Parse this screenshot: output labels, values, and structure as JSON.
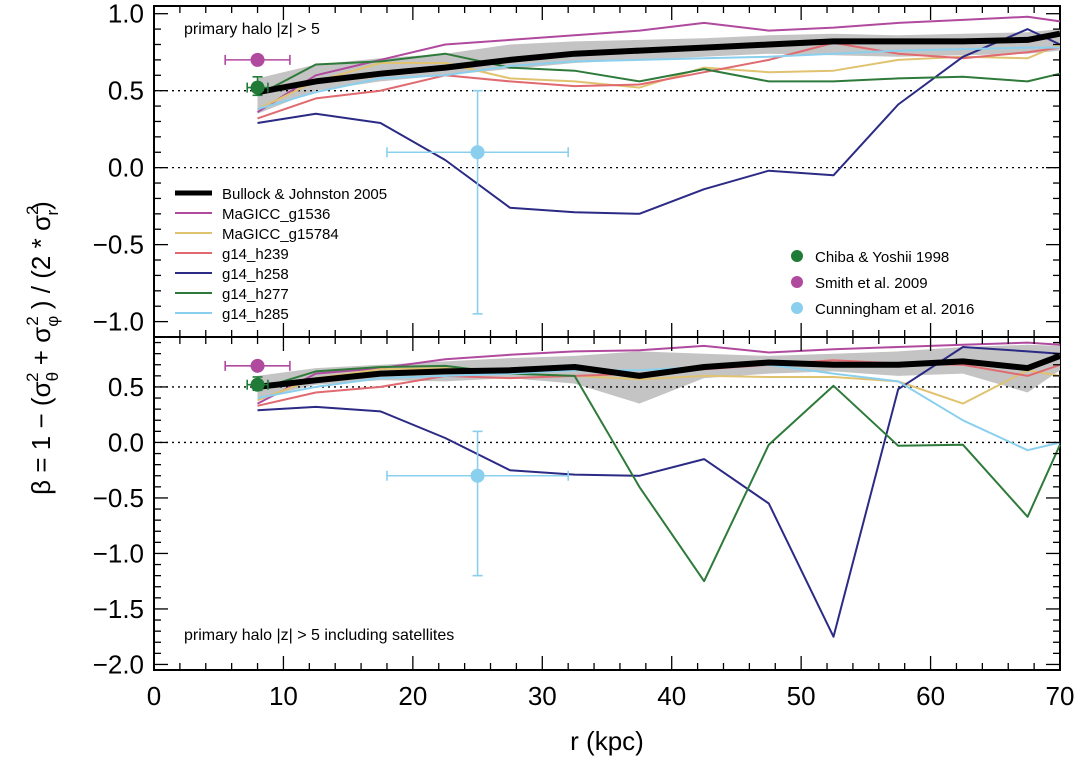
{
  "chart_data": {
    "type": "line",
    "xlabel": "r (kpc)",
    "ylabel": {
      "text_a": "β = 1 − (σ",
      "sup_a": "2",
      "sub_a": "θ",
      "text_b": " + σ",
      "sup_b": "2",
      "sub_b": "φ",
      "text_c": " ) / (2 * σ",
      "sup_c": "2",
      "sub_c": "r",
      "text_d": ")"
    },
    "xlim": [
      0,
      70
    ],
    "x_ticks": [
      "0",
      "10",
      "20",
      "30",
      "40",
      "50",
      "60",
      "70"
    ],
    "x_tick_values": [
      0,
      10,
      20,
      30,
      40,
      50,
      60,
      70
    ],
    "grid": false,
    "reference_lines": [
      0.0,
      0.5
    ],
    "panels": [
      {
        "annotation": "primary halo |z| > 5",
        "annotation_position": "top-left",
        "ylim": [
          -1.1,
          1.05
        ],
        "y_ticks": [
          "1.0",
          "0.5",
          "0.0",
          "−0.5",
          "−1.0"
        ],
        "y_tick_values": [
          1.0,
          0.5,
          0.0,
          -0.5,
          -1.0
        ],
        "bullock_band": {
          "x": [
            8,
            12.5,
            17.5,
            22.5,
            27.5,
            32.5,
            37.5,
            42.5,
            47.5,
            52.5,
            57.5,
            62.5,
            67.5,
            70
          ],
          "lower": [
            0.35,
            0.5,
            0.56,
            0.6,
            0.64,
            0.68,
            0.7,
            0.72,
            0.74,
            0.73,
            0.72,
            0.73,
            0.74,
            0.76
          ],
          "upper": [
            0.58,
            0.67,
            0.71,
            0.74,
            0.8,
            0.82,
            0.83,
            0.84,
            0.86,
            0.87,
            0.86,
            0.87,
            0.88,
            0.9
          ]
        },
        "series": [
          {
            "name": "Bullock & Johnston 2005",
            "color": "#000000",
            "width": 6,
            "x": [
              8,
              12.5,
              17.5,
              22.5,
              27.5,
              32.5,
              37.5,
              42.5,
              47.5,
              52.5,
              57.5,
              62.5,
              67.5,
              70
            ],
            "y": [
              0.49,
              0.56,
              0.61,
              0.65,
              0.7,
              0.74,
              0.76,
              0.78,
              0.8,
              0.82,
              0.82,
              0.82,
              0.83,
              0.87
            ]
          },
          {
            "name": "MaGICC_g1536",
            "color": "#b04a9e",
            "width": 2,
            "x": [
              8,
              12.5,
              17.5,
              22.5,
              27.5,
              32.5,
              37.5,
              42.5,
              47.5,
              52.5,
              57.5,
              62.5,
              67.5,
              70
            ],
            "y": [
              0.36,
              0.6,
              0.7,
              0.8,
              0.83,
              0.86,
              0.89,
              0.94,
              0.89,
              0.91,
              0.94,
              0.96,
              0.98,
              0.95
            ]
          },
          {
            "name": "MaGICC_g15784",
            "color": "#e0c270",
            "width": 2,
            "x": [
              8,
              12.5,
              17.5,
              22.5,
              27.5,
              32.5,
              37.5,
              42.5,
              47.5,
              52.5,
              57.5,
              62.5,
              67.5,
              70
            ],
            "y": [
              0.38,
              0.56,
              0.68,
              0.68,
              0.58,
              0.56,
              0.52,
              0.65,
              0.62,
              0.63,
              0.7,
              0.72,
              0.71,
              0.8
            ]
          },
          {
            "name": "g14_h239",
            "color": "#e06a70",
            "width": 2,
            "x": [
              8,
              12.5,
              17.5,
              22.5,
              27.5,
              32.5,
              37.5,
              42.5,
              47.5,
              52.5,
              57.5,
              62.5,
              67.5,
              70
            ],
            "y": [
              0.32,
              0.45,
              0.5,
              0.6,
              0.56,
              0.53,
              0.54,
              0.62,
              0.7,
              0.81,
              0.74,
              0.71,
              0.75,
              0.78
            ]
          },
          {
            "name": "g14_h258",
            "color": "#2b2a85",
            "width": 2,
            "x": [
              8,
              12.5,
              17.5,
              22.5,
              27.5,
              32.5,
              37.5,
              42.5,
              47.5,
              52.5,
              57.5,
              62.5,
              67.5,
              70
            ],
            "y": [
              0.29,
              0.35,
              0.29,
              0.05,
              -0.26,
              -0.29,
              -0.3,
              -0.14,
              -0.02,
              -0.05,
              0.41,
              0.72,
              0.9,
              0.8
            ]
          },
          {
            "name": "g14_h277",
            "color": "#2e7a3a",
            "width": 2,
            "x": [
              8,
              12.5,
              17.5,
              22.5,
              27.5,
              32.5,
              37.5,
              42.5,
              47.5,
              52.5,
              57.5,
              62.5,
              67.5,
              70
            ],
            "y": [
              0.47,
              0.67,
              0.69,
              0.74,
              0.65,
              0.63,
              0.56,
              0.64,
              0.56,
              0.56,
              0.58,
              0.59,
              0.56,
              0.61
            ]
          },
          {
            "name": "g14_h285",
            "color": "#8ad0ee",
            "width": 2,
            "x": [
              8,
              12.5,
              17.5,
              22.5,
              27.5,
              32.5,
              37.5,
              42.5,
              47.5,
              52.5,
              57.5,
              62.5,
              67.5,
              70
            ],
            "y": [
              0.38,
              0.49,
              0.58,
              0.6,
              0.66,
              0.69,
              0.7,
              0.71,
              0.72,
              0.74,
              0.76,
              0.77,
              0.78,
              0.78
            ]
          }
        ],
        "observations": [
          {
            "name": "Chiba & Yoshii 1998",
            "color": "#207a38",
            "x": 8,
            "y": 0.52,
            "xerr": [
              0.8,
              0.8
            ],
            "yerr": [
              0.05,
              0.07
            ]
          },
          {
            "name": "Smith et al. 2009",
            "color": "#b04a9e",
            "x": 8,
            "y": 0.7,
            "xerr": [
              2.5,
              2.5
            ],
            "yerr": [
              0,
              0
            ]
          },
          {
            "name": "Cunningham et al. 2016",
            "color": "#8ad0ee",
            "x": 25,
            "y": 0.1,
            "xerr": [
              7,
              7
            ],
            "yerr": [
              1.05,
              0.4
            ]
          }
        ]
      },
      {
        "annotation": "primary halo |z| > 5 including satellites",
        "annotation_position": "bottom-left",
        "ylim": [
          -2.05,
          0.95
        ],
        "y_ticks": [
          "0.5",
          "0.0",
          "−0.5",
          "−1.0",
          "−1.5",
          "−2.0"
        ],
        "y_tick_values": [
          0.5,
          0.0,
          -0.5,
          -1.0,
          -1.5,
          -2.0
        ],
        "bullock_band": {
          "x": [
            8,
            12.5,
            17.5,
            22.5,
            27.5,
            32.5,
            37.5,
            42.5,
            47.5,
            52.5,
            57.5,
            62.5,
            67.5,
            70
          ],
          "lower": [
            0.4,
            0.52,
            0.56,
            0.55,
            0.58,
            0.53,
            0.35,
            0.58,
            0.62,
            0.64,
            0.6,
            0.62,
            0.45,
            0.65
          ],
          "upper": [
            0.6,
            0.67,
            0.7,
            0.73,
            0.76,
            0.78,
            0.82,
            0.8,
            0.78,
            0.8,
            0.82,
            0.86,
            0.88,
            0.87
          ]
        },
        "series": [
          {
            "name": "Bullock & Johnston 2005",
            "color": "#000000",
            "width": 6,
            "x": [
              8,
              12.5,
              17.5,
              22.5,
              27.5,
              32.5,
              37.5,
              42.5,
              47.5,
              52.5,
              57.5,
              62.5,
              67.5,
              70
            ],
            "y": [
              0.5,
              0.56,
              0.62,
              0.64,
              0.65,
              0.68,
              0.6,
              0.68,
              0.72,
              0.7,
              0.7,
              0.73,
              0.67,
              0.78
            ]
          },
          {
            "name": "MaGICC_g1536",
            "color": "#b04a9e",
            "width": 2,
            "x": [
              8,
              12.5,
              17.5,
              22.5,
              27.5,
              32.5,
              37.5,
              42.5,
              47.5,
              52.5,
              57.5,
              62.5,
              67.5,
              70
            ],
            "y": [
              0.35,
              0.62,
              0.67,
              0.75,
              0.79,
              0.82,
              0.83,
              0.87,
              0.81,
              0.84,
              0.86,
              0.88,
              0.9,
              0.88
            ]
          },
          {
            "name": "MaGICC_g15784",
            "color": "#e0c270",
            "width": 2,
            "x": [
              8,
              12.5,
              17.5,
              22.5,
              27.5,
              32.5,
              37.5,
              42.5,
              47.5,
              52.5,
              57.5,
              62.5,
              67.5,
              70
            ],
            "y": [
              0.38,
              0.58,
              0.66,
              0.67,
              0.62,
              0.6,
              0.57,
              0.6,
              0.59,
              0.59,
              0.55,
              0.35,
              0.65,
              0.6
            ]
          },
          {
            "name": "g14_h239",
            "color": "#e06a70",
            "width": 2,
            "x": [
              8,
              12.5,
              17.5,
              22.5,
              27.5,
              32.5,
              37.5,
              42.5,
              47.5,
              52.5,
              57.5,
              62.5,
              67.5,
              70
            ],
            "y": [
              0.33,
              0.45,
              0.5,
              0.6,
              0.58,
              0.6,
              0.62,
              0.66,
              0.7,
              0.74,
              0.71,
              0.7,
              0.6,
              0.7
            ]
          },
          {
            "name": "g14_h258",
            "color": "#2b2a85",
            "width": 2,
            "x": [
              8,
              12.5,
              17.5,
              22.5,
              27.5,
              32.5,
              37.5,
              42.5,
              47.5,
              52.5,
              57.5,
              62.5,
              67.5,
              70
            ],
            "y": [
              0.29,
              0.32,
              0.28,
              0.04,
              -0.25,
              -0.29,
              -0.3,
              -0.15,
              -0.55,
              -1.75,
              0.48,
              0.86,
              0.82,
              0.8
            ]
          },
          {
            "name": "g14_h277",
            "color": "#2e7a3a",
            "width": 2,
            "x": [
              8,
              12.5,
              17.5,
              22.5,
              27.5,
              32.5,
              37.5,
              42.5,
              47.5,
              52.5,
              57.5,
              62.5,
              67.5,
              70
            ],
            "y": [
              0.48,
              0.64,
              0.68,
              0.69,
              0.62,
              0.6,
              -0.4,
              -1.25,
              -0.02,
              0.51,
              -0.03,
              -0.02,
              -0.67,
              -0.02
            ]
          },
          {
            "name": "g14_h285",
            "color": "#8ad0ee",
            "width": 2,
            "x": [
              8,
              12.5,
              17.5,
              22.5,
              27.5,
              32.5,
              37.5,
              42.5,
              47.5,
              52.5,
              57.5,
              62.5,
              67.5,
              70
            ],
            "y": [
              0.4,
              0.5,
              0.58,
              0.6,
              0.62,
              0.65,
              0.65,
              0.68,
              0.7,
              0.62,
              0.55,
              0.2,
              -0.07,
              0.0
            ]
          }
        ],
        "observations": [
          {
            "name": "Chiba & Yoshii 1998",
            "color": "#207a38",
            "x": 8,
            "y": 0.52,
            "xerr": [
              0.8,
              0.8
            ],
            "yerr": [
              0.05,
              0.07
            ]
          },
          {
            "name": "Smith et al. 2009",
            "color": "#b04a9e",
            "x": 8,
            "y": 0.69,
            "xerr": [
              2.5,
              2.5
            ],
            "yerr": [
              0,
              0
            ]
          },
          {
            "name": "Cunningham et al. 2016",
            "color": "#8ad0ee",
            "x": 25,
            "y": -0.3,
            "xerr": [
              7,
              7
            ],
            "yerr": [
              0.9,
              0.4
            ]
          }
        ]
      }
    ],
    "legend_lines": {
      "position": "middle-left of top panel",
      "entries": [
        "Bullock & Johnston 2005",
        "MaGICC_g1536",
        "MaGICC_g15784",
        "g14_h239",
        "g14_h258",
        "g14_h277",
        "g14_h285"
      ]
    },
    "legend_points": {
      "position": "bottom-right of top panel",
      "entries": [
        "Chiba & Yoshii 1998",
        "Smith et al. 2009",
        "Cunningham et al. 2016"
      ]
    }
  }
}
